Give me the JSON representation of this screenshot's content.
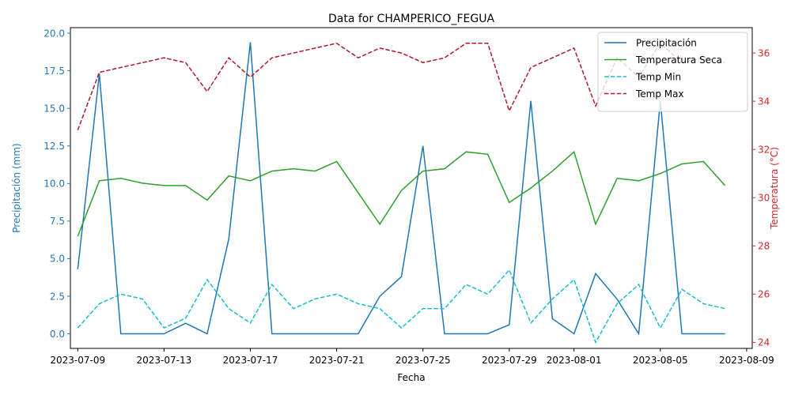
{
  "chart_data": {
    "type": "line",
    "title": "Data for CHAMPERICO_FEGUA",
    "xlabel": "Fecha",
    "ylabel_left": "Precipitación (mm)",
    "ylabel_right": "Temperatura (°C)",
    "left_ylim": [
      -0.97,
      20.37
    ],
    "right_ylim": [
      23.75,
      37.05
    ],
    "xlim": [
      "2023-07-08.0",
      "2023-08-09.1"
    ],
    "left_ticks": [
      "0.0",
      "2.5",
      "5.0",
      "7.5",
      "10.0",
      "12.5",
      "15.0",
      "17.5",
      "20.0"
    ],
    "right_ticks": [
      "24",
      "26",
      "28",
      "30",
      "32",
      "34",
      "36"
    ],
    "x_ticks": [
      "2023-07-09",
      "2023-07-13",
      "2023-07-17",
      "2023-07-21",
      "2023-07-25",
      "2023-07-29",
      "2023-08-01",
      "2023-08-05",
      "2023-08-09"
    ],
    "legend_position": "top-right",
    "grid": false,
    "dates": [
      "2023-07-09",
      "2023-07-10",
      "2023-07-11",
      "2023-07-12",
      "2023-07-13",
      "2023-07-14",
      "2023-07-15",
      "2023-07-16",
      "2023-07-17",
      "2023-07-18",
      "2023-07-19",
      "2023-07-20",
      "2023-07-21",
      "2023-07-22",
      "2023-07-23",
      "2023-07-24",
      "2023-07-25",
      "2023-07-26",
      "2023-07-27",
      "2023-07-28",
      "2023-07-29",
      "2023-07-30",
      "2023-07-31",
      "2023-08-01",
      "2023-08-02",
      "2023-08-03",
      "2023-08-04",
      "2023-08-05",
      "2023-08-06",
      "2023-08-07",
      "2023-08-08"
    ],
    "series": [
      {
        "name": "Precipitación",
        "axis": "left",
        "color": "#1f77b4",
        "dash": "solid",
        "values": [
          4.3,
          17.3,
          0,
          0,
          0,
          0.7,
          0,
          6.3,
          19.4,
          0,
          0,
          0,
          0,
          0,
          2.5,
          3.8,
          12.5,
          0,
          0,
          0,
          0.6,
          15.5,
          1.0,
          0,
          4.0,
          2.3,
          0,
          15.5,
          0,
          0,
          0
        ]
      },
      {
        "name": "Temperatura Seca",
        "axis": "right",
        "color": "#2ca02c",
        "dash": "solid",
        "values": [
          28.4,
          30.7,
          30.8,
          30.6,
          30.5,
          30.5,
          29.9,
          30.9,
          30.7,
          31.1,
          31.2,
          31.1,
          31.5,
          30.2,
          28.9,
          30.3,
          31.1,
          31.2,
          31.9,
          31.8,
          29.8,
          30.4,
          31.1,
          31.9,
          28.9,
          30.8,
          30.7,
          31.0,
          31.4,
          31.5,
          30.5
        ]
      },
      {
        "name": "Temp Min",
        "axis": "right",
        "color": "#17becf",
        "dash": "dashed",
        "values": [
          24.6,
          25.6,
          26.0,
          25.8,
          24.6,
          25.0,
          26.6,
          25.4,
          24.8,
          26.4,
          25.4,
          25.8,
          26.0,
          25.6,
          25.4,
          24.6,
          25.4,
          25.4,
          26.4,
          26.0,
          27.0,
          24.8,
          25.8,
          26.6,
          24.0,
          25.6,
          26.4,
          24.6,
          26.2,
          25.6,
          25.4
        ]
      },
      {
        "name": "Temp Max",
        "axis": "right",
        "color": "#b2182b",
        "dash": "dashed",
        "values": [
          32.8,
          35.2,
          35.4,
          35.6,
          35.8,
          35.6,
          34.4,
          35.8,
          35.0,
          35.8,
          36.0,
          36.2,
          36.4,
          35.8,
          36.2,
          36.0,
          35.6,
          35.8,
          36.4,
          36.4,
          33.6,
          35.4,
          35.8,
          36.2,
          33.8,
          35.8,
          35.0,
          36.4,
          35.6,
          35.8,
          35.6
        ]
      }
    ]
  },
  "colors": {
    "left_axis": "#1f77b4",
    "right_axis": "#d62728"
  }
}
